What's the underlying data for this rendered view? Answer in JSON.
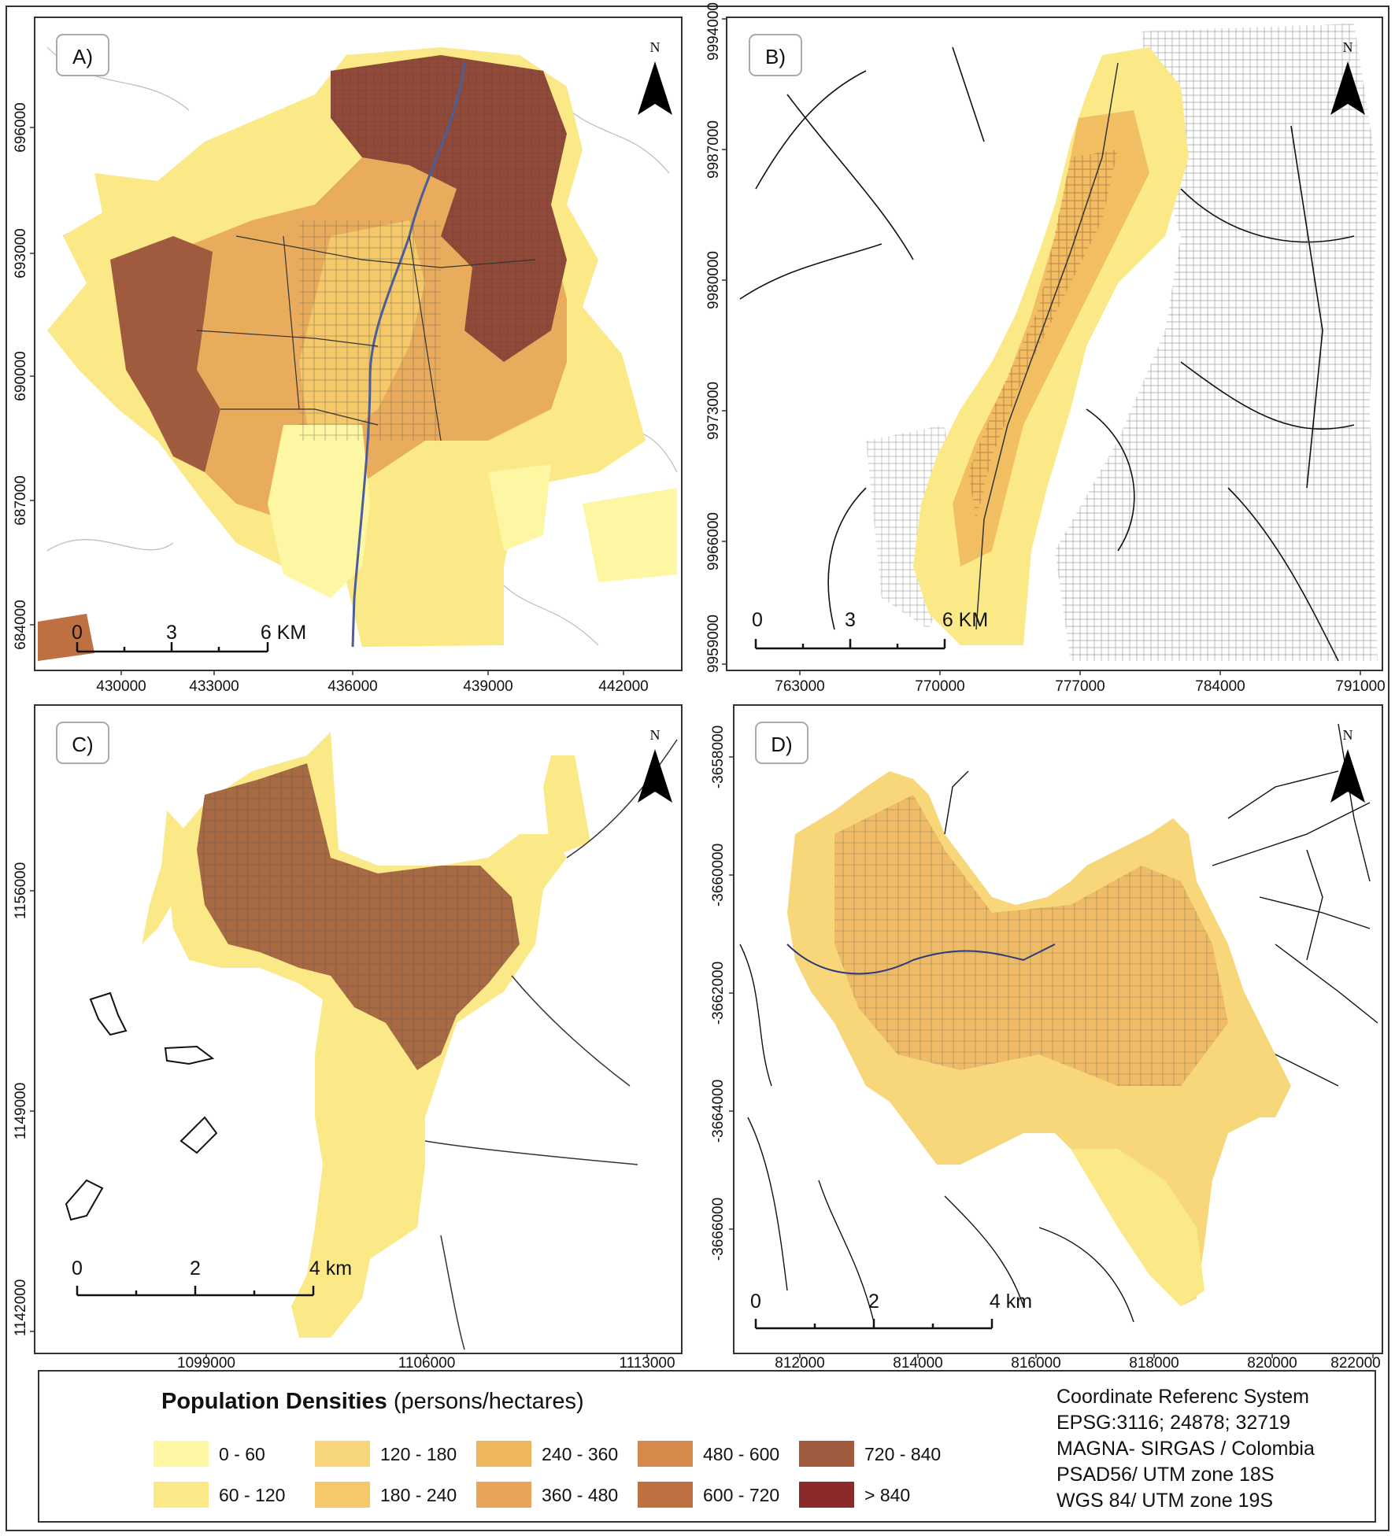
{
  "panels": [
    {
      "id": "A",
      "label": "A)",
      "north": "N",
      "y_ticks": [
        "696000",
        "693000",
        "690000",
        "687000",
        "684000"
      ],
      "x_ticks": [
        "430000",
        "433000",
        "436000",
        "439000",
        "442000"
      ],
      "scale": [
        "0",
        "3",
        "6 KM"
      ]
    },
    {
      "id": "B",
      "label": "B)",
      "north": "N",
      "y_ticks": [
        "9994000",
        "9987000",
        "9980000",
        "9973000",
        "9966000",
        "9959000"
      ],
      "x_ticks": [
        "763000",
        "770000",
        "777000",
        "784000",
        "791000"
      ],
      "scale": [
        "0",
        "3",
        "6 KM"
      ]
    },
    {
      "id": "C",
      "label": "C)",
      "north": "N",
      "y_ticks": [
        "1156000",
        "1149000",
        "1142000"
      ],
      "x_ticks": [
        "1099000",
        "1106000",
        "1113000"
      ],
      "scale": [
        "0",
        "2",
        "4 km"
      ]
    },
    {
      "id": "D",
      "label": "D)",
      "north": "N",
      "y_ticks": [
        "-3658000",
        "-3660000",
        "-3662000",
        "-3664000",
        "-3666000"
      ],
      "x_ticks": [
        "812000",
        "814000",
        "816000",
        "818000",
        "820000",
        "822000"
      ],
      "scale": [
        "0",
        "2",
        "4 km"
      ]
    }
  ],
  "legend": {
    "title": "Population Densities",
    "unit": "(persons/hectares)",
    "classes": [
      {
        "label": "0 - 60",
        "color": "#fdf6a3"
      },
      {
        "label": "60 - 120",
        "color": "#fbe988"
      },
      {
        "label": "120 - 180",
        "color": "#f8d77a"
      },
      {
        "label": "180 - 240",
        "color": "#f5c869"
      },
      {
        "label": "240 - 360",
        "color": "#f0b65c"
      },
      {
        "label": "360 - 480",
        "color": "#e7a458"
      },
      {
        "label": "480 - 600",
        "color": "#d58a4c"
      },
      {
        "label": "600 - 720",
        "color": "#bf7040"
      },
      {
        "label": "720 - 840",
        "color": "#a05a3e"
      },
      {
        "label": "> 840",
        "color": "#8a2a2a"
      }
    ]
  },
  "crs": {
    "lines": [
      "Coordinate Referenc System",
      "EPSG:3116; 24878; 32719",
      "MAGNA- SIRGAS / Colombia",
      "PSAD56/ UTM zone 18S",
      "WGS 84/ UTM zone 19S"
    ]
  }
}
